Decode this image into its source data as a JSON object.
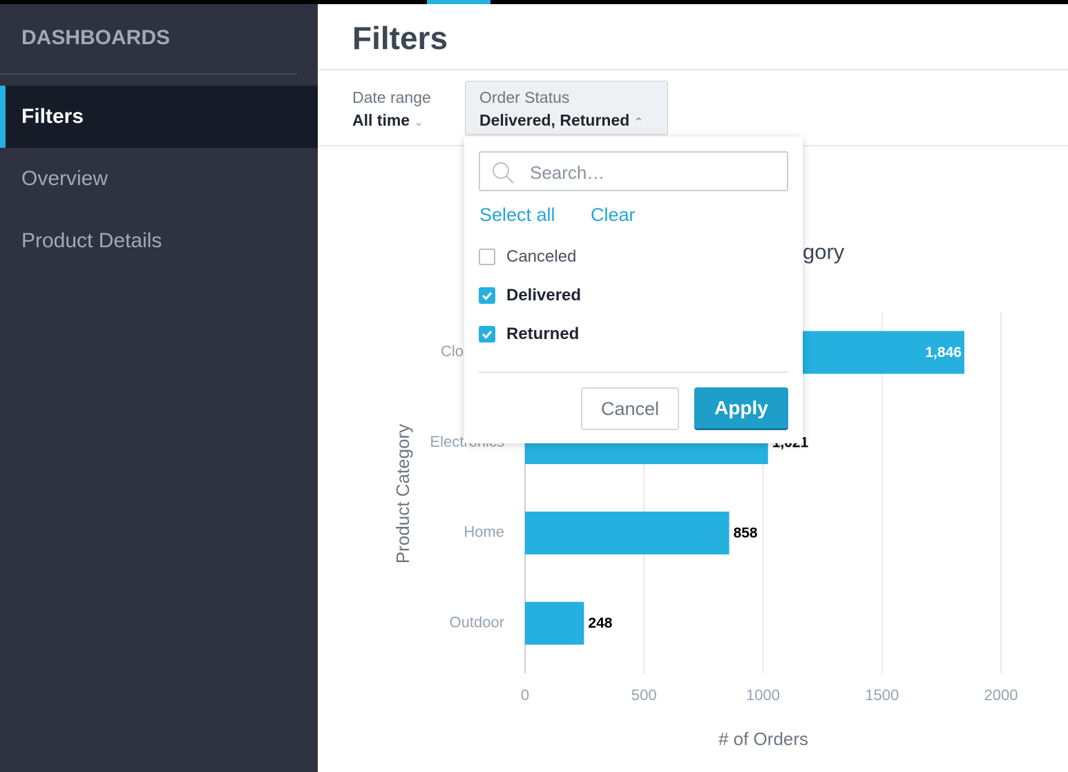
{
  "sidebar": {
    "title": "DASHBOARDS",
    "items": [
      {
        "label": "Filters",
        "active": true
      },
      {
        "label": "Overview",
        "active": false
      },
      {
        "label": "Product Details",
        "active": false
      }
    ]
  },
  "header": {
    "title": "Filters"
  },
  "filters": [
    {
      "label": "Date range",
      "value": "All time"
    },
    {
      "label": "Order Status",
      "value": "Delivered, Returned"
    }
  ],
  "dropdown": {
    "search_placeholder": "Search…",
    "select_all": "Select all",
    "clear": "Clear",
    "options": [
      {
        "label": "Canceled",
        "checked": false
      },
      {
        "label": "Delivered",
        "checked": true
      },
      {
        "label": "Returned",
        "checked": true
      }
    ],
    "cancel": "Cancel",
    "apply": "Apply"
  },
  "chart_data": {
    "type": "bar",
    "orientation": "horizontal",
    "title": "gory",
    "x_label": "# of Orders",
    "y_label": "Product Category",
    "categories": [
      "Clo",
      "Electronics",
      "Home",
      "Outdoor"
    ],
    "values": [
      1846,
      1021,
      858,
      248
    ],
    "value_labels": [
      "1,846",
      "1,021",
      "858",
      "248"
    ],
    "color": "#26b0df",
    "xlim": [
      0,
      2000
    ],
    "xticks": [
      0,
      500,
      1000,
      1500,
      2000
    ],
    "grid": true
  }
}
